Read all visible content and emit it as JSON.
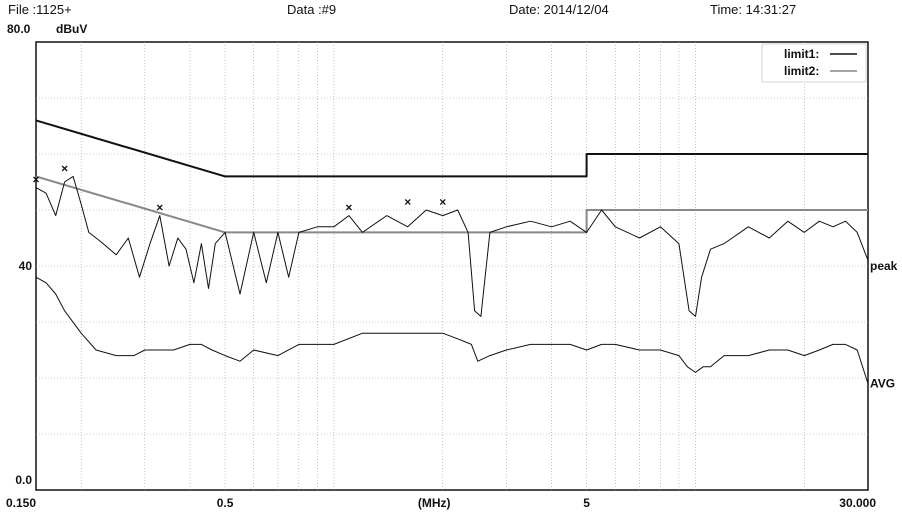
{
  "header": {
    "file": "File :1125+",
    "data": "Data :#9",
    "date": "Date: 2014/12/04",
    "time": "Time: 14:31:27"
  },
  "chart_data": {
    "type": "line",
    "x_scale": "log",
    "xlim": [
      0.15,
      30
    ],
    "ylim": [
      0,
      80
    ],
    "y_top_label": "80.0",
    "y_unit": "dBuV",
    "x_unit_label": "(MHz)",
    "x_tick_labels": [
      {
        "x": 0.15,
        "label": "0.150"
      },
      {
        "x": 0.5,
        "label": "0.5"
      },
      {
        "x": 5,
        "label": "5"
      },
      {
        "x": 30,
        "label": "30.000"
      }
    ],
    "y_tick_labels": [
      {
        "y": 40,
        "label": "40"
      },
      {
        "y": 0,
        "label": "0.0"
      }
    ],
    "grid": true,
    "legend": {
      "position": "top-right",
      "entries": [
        {
          "name": "limit1:",
          "color": "#111111"
        },
        {
          "name": "limit2:",
          "color": "#888888"
        }
      ]
    },
    "series": [
      {
        "name": "limit1:",
        "color": "#111111",
        "x": [
          0.15,
          0.5,
          5,
          5,
          30
        ],
        "y": [
          66,
          56,
          56,
          60,
          60
        ]
      },
      {
        "name": "limit2:",
        "color": "#888888",
        "x": [
          0.15,
          0.5,
          5,
          5,
          30
        ],
        "y": [
          56,
          46,
          46,
          50,
          50
        ]
      },
      {
        "name": "peak",
        "color": "#111111",
        "x": [
          0.15,
          0.16,
          0.17,
          0.18,
          0.19,
          0.2,
          0.21,
          0.22,
          0.23,
          0.25,
          0.27,
          0.29,
          0.31,
          0.33,
          0.35,
          0.37,
          0.39,
          0.41,
          0.43,
          0.45,
          0.47,
          0.5,
          0.55,
          0.6,
          0.65,
          0.7,
          0.75,
          0.8,
          0.9,
          1.0,
          1.1,
          1.2,
          1.4,
          1.6,
          1.8,
          2.0,
          2.2,
          2.35,
          2.45,
          2.55,
          2.7,
          3.0,
          3.5,
          4.0,
          4.5,
          5.0,
          5.5,
          6.0,
          7.0,
          8.0,
          9.0,
          9.6,
          10.0,
          10.4,
          11.0,
          12.0,
          14.0,
          16.0,
          18.0,
          20.0,
          22.0,
          24.0,
          26.0,
          28.0,
          30.0
        ],
        "y": [
          54,
          53,
          49,
          55,
          56,
          51,
          46,
          45,
          44,
          42,
          45,
          38,
          44,
          49,
          40,
          45,
          43,
          37,
          44,
          36,
          44,
          46,
          35,
          46,
          37,
          46,
          38,
          46,
          47,
          47,
          49,
          46,
          49,
          47,
          50,
          49,
          50,
          46,
          32,
          31,
          46,
          47,
          48,
          47,
          48,
          46,
          50,
          47,
          45,
          47,
          44,
          32,
          31,
          38,
          43,
          44,
          47,
          45,
          48,
          46,
          48,
          47,
          48,
          46,
          41
        ]
      },
      {
        "name": "AVG",
        "color": "#111111",
        "x": [
          0.15,
          0.16,
          0.17,
          0.18,
          0.2,
          0.22,
          0.25,
          0.28,
          0.3,
          0.33,
          0.36,
          0.4,
          0.43,
          0.46,
          0.5,
          0.55,
          0.6,
          0.7,
          0.8,
          0.9,
          1.0,
          1.2,
          1.5,
          1.8,
          2.0,
          2.2,
          2.4,
          2.5,
          2.7,
          3.0,
          3.5,
          4.0,
          4.5,
          5.0,
          5.5,
          6.0,
          7.0,
          8.0,
          9.0,
          9.5,
          10.0,
          10.5,
          11.0,
          12.0,
          14.0,
          16.0,
          18.0,
          20.0,
          22.0,
          24.0,
          26.0,
          28.0,
          30.0
        ],
        "y": [
          38,
          37,
          35,
          32,
          28,
          25,
          24,
          24,
          25,
          25,
          25,
          26,
          26,
          25,
          24,
          23,
          25,
          24,
          26,
          26,
          26,
          28,
          28,
          28,
          28,
          27,
          26,
          23,
          24,
          25,
          26,
          26,
          26,
          25,
          26,
          26,
          25,
          25,
          24,
          22,
          21,
          22,
          22,
          24,
          24,
          25,
          25,
          24,
          25,
          26,
          26,
          25,
          19
        ]
      }
    ],
    "series_labels": [
      {
        "name": "peak",
        "y": 40
      },
      {
        "name": "AVG",
        "y": 19
      }
    ],
    "markers": [
      {
        "x": 0.15,
        "y": 54
      },
      {
        "x": 0.18,
        "y": 56
      },
      {
        "x": 0.33,
        "y": 49
      },
      {
        "x": 1.1,
        "y": 49
      },
      {
        "x": 1.6,
        "y": 50
      },
      {
        "x": 2.0,
        "y": 50
      }
    ]
  }
}
